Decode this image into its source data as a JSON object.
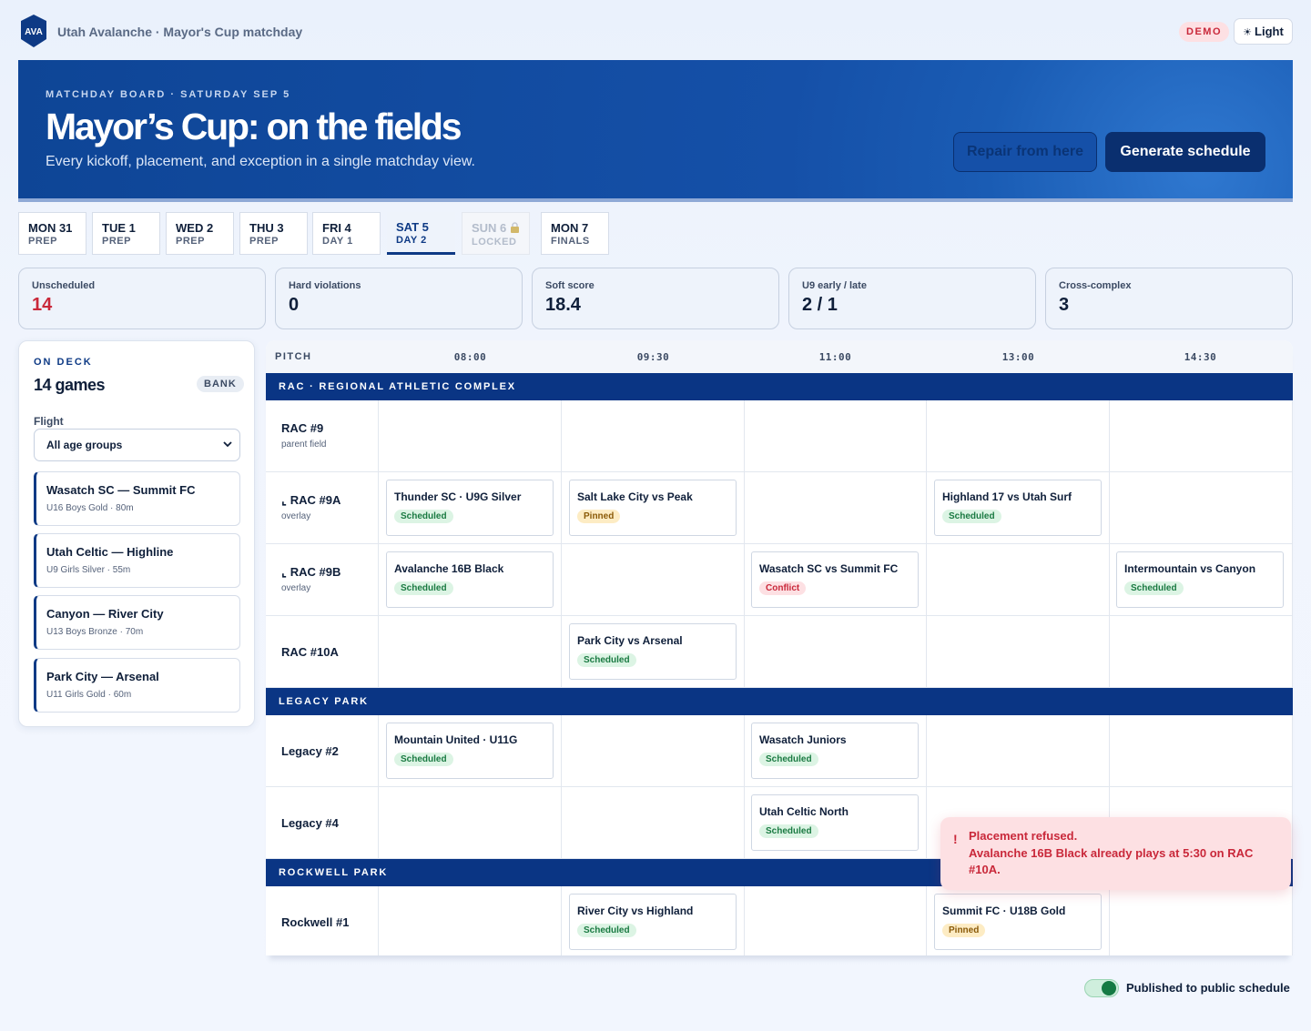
{
  "app": {
    "logo_text": "AVA",
    "title": "Utah Avalanche · Mayor's Cup matchday",
    "demo_badge": "DEMO",
    "theme_icon": "sun-icon",
    "theme_label": "Light"
  },
  "hero": {
    "eyebrow": "MATCHDAY BOARD · SATURDAY SEP 5",
    "title": "Mayor’s Cup: on the fields",
    "subtitle": "Every kickoff, placement, and exception in a single matchday view.",
    "repair_label": "Repair from here",
    "generate_label": "Generate schedule"
  },
  "days": [
    {
      "day": "MON 31",
      "phase": "PREP"
    },
    {
      "day": "TUE 1",
      "phase": "PREP"
    },
    {
      "day": "WED 2",
      "phase": "PREP"
    },
    {
      "day": "THU 3",
      "phase": "PREP"
    },
    {
      "day": "FRI 4",
      "phase": "DAY 1"
    },
    {
      "day": "SAT 5",
      "phase": "DAY 2",
      "active": true
    },
    {
      "day": "SUN 6",
      "phase": "LOCKED",
      "locked": true,
      "icon": "lock-icon"
    },
    {
      "day": "MON 7",
      "phase": "FINALS"
    }
  ],
  "stats": [
    {
      "label": "Unscheduled",
      "value": "14",
      "alert": true
    },
    {
      "label": "Hard violations",
      "value": "0"
    },
    {
      "label": "Soft score",
      "value": "18.4"
    },
    {
      "label": "U9 early / late",
      "value": "2 / 1"
    },
    {
      "label": "Cross-complex",
      "value": "3"
    }
  ],
  "deck": {
    "eyebrow": "ON DECK",
    "count": "14 games",
    "badge": "BANK",
    "flight_label": "Flight",
    "flight_value": "All age groups",
    "cards": [
      {
        "title": "Wasatch SC — Summit FC",
        "meta": "U16 Boys Gold · 80m"
      },
      {
        "title": "Utah Celtic — Highline",
        "meta": "U9 Girls Silver · 55m"
      },
      {
        "title": "Canyon — River City",
        "meta": "U13 Boys Bronze · 70m"
      },
      {
        "title": "Park City — Arsenal",
        "meta": "U11 Girls Gold · 60m"
      }
    ]
  },
  "grid": {
    "pitch_header": "PITCH",
    "times": [
      "08:00",
      "09:30",
      "11:00",
      "13:00",
      "14:30"
    ],
    "complexes": [
      {
        "name": "RAC · REGIONAL ATHLETIC COMPLEX",
        "pitches": [
          {
            "name": "RAC #9",
            "sub": "parent field",
            "games": [
              null,
              null,
              null,
              null,
              null
            ]
          },
          {
            "name": "⌞ RAC #9A",
            "sub": "overlay",
            "games": [
              {
                "title": "Thunder SC · U9G Silver",
                "status": "Scheduled",
                "kind": "scheduled"
              },
              {
                "title": "Salt Lake City vs Peak",
                "status": "Pinned",
                "kind": "pinned"
              },
              null,
              {
                "title": "Highland 17 vs Utah Surf",
                "status": "Scheduled",
                "kind": "scheduled"
              },
              null
            ]
          },
          {
            "name": "⌞ RAC #9B",
            "sub": "overlay",
            "games": [
              {
                "title": "Avalanche 16B Black",
                "status": "Scheduled",
                "kind": "scheduled"
              },
              null,
              {
                "title": "Wasatch SC vs Summit FC",
                "status": "Conflict",
                "kind": "conflict"
              },
              null,
              {
                "title": "Intermountain vs Canyon",
                "status": "Scheduled",
                "kind": "scheduled"
              }
            ]
          },
          {
            "name": "RAC #10A",
            "sub": "",
            "games": [
              null,
              {
                "title": "Park City vs Arsenal",
                "status": "Scheduled",
                "kind": "scheduled"
              },
              null,
              null,
              null
            ]
          }
        ]
      },
      {
        "name": "LEGACY PARK",
        "pitches": [
          {
            "name": "Legacy #2",
            "sub": "",
            "games": [
              {
                "title": "Mountain United · U11G",
                "status": "Scheduled",
                "kind": "scheduled"
              },
              null,
              {
                "title": "Wasatch Juniors",
                "status": "Scheduled",
                "kind": "scheduled"
              },
              null,
              null
            ]
          },
          {
            "name": "Legacy #4",
            "sub": "",
            "games": [
              null,
              null,
              {
                "title": "Utah Celtic North",
                "status": "Scheduled",
                "kind": "scheduled"
              },
              null,
              null
            ]
          }
        ]
      },
      {
        "name": "ROCKWELL PARK",
        "pitches": [
          {
            "name": "Rockwell #1",
            "sub": "",
            "games": [
              null,
              {
                "title": "River City vs Highland",
                "status": "Scheduled",
                "kind": "scheduled"
              },
              null,
              {
                "title": "Summit FC · U18B Gold",
                "status": "Pinned",
                "kind": "pinned"
              },
              null
            ]
          }
        ]
      }
    ]
  },
  "toast": {
    "icon": "!",
    "title": "Placement refused.",
    "message": "Avalanche 16B Black already plays at 5:30 on RAC #10A."
  },
  "publish": {
    "label": "Published to public schedule",
    "on": true
  },
  "colors": {
    "brand": "#0a3584",
    "alert": "#c9283a",
    "scheduled": "#1a7a42",
    "pinned": "#8a5a08"
  }
}
